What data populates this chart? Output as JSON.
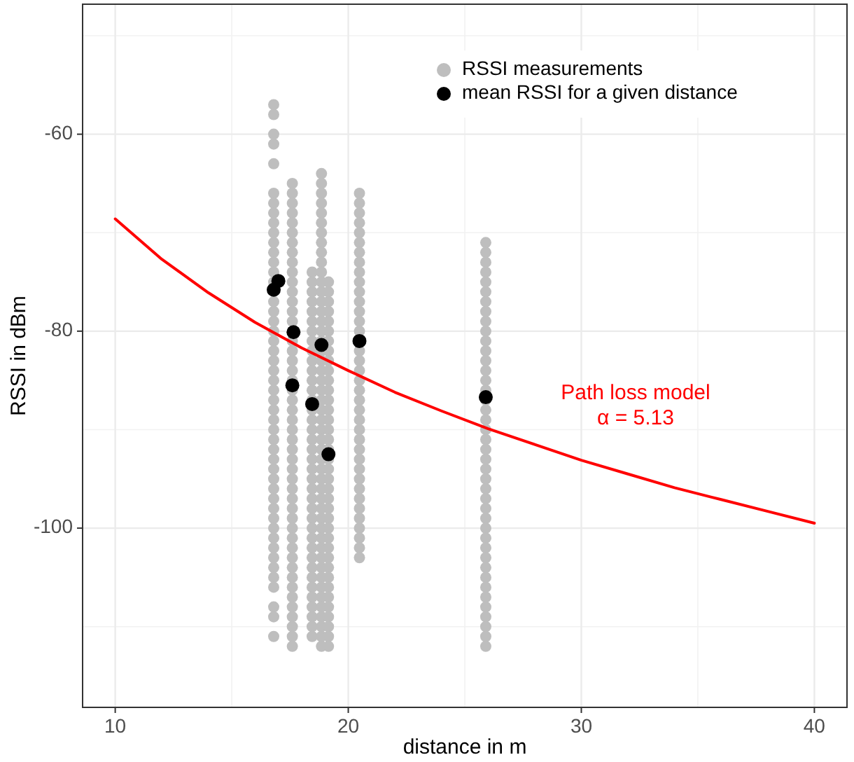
{
  "chart_data": {
    "type": "scatter",
    "xlabel": "distance in m",
    "ylabel": "RSSI in dBm",
    "xlim": [
      8.6,
      41.4
    ],
    "ylim": [
      -118.2,
      -46.8
    ],
    "xticks": [
      10,
      20,
      30,
      40
    ],
    "yticks": [
      -60,
      -80,
      -100
    ],
    "grid": true,
    "legend": "top right",
    "marker": "circle",
    "series": [
      {
        "name": "RSSI measurements",
        "color": "#bebebe",
        "x": [
          16.8,
          16.8,
          16.8,
          16.8,
          16.8,
          16.8,
          16.8,
          16.8,
          16.8,
          16.8,
          16.8,
          16.8,
          16.8,
          16.8,
          16.8,
          16.8,
          16.8,
          16.8,
          16.8,
          16.8,
          16.8,
          16.8,
          16.8,
          16.8,
          16.8,
          16.8,
          16.8,
          16.8,
          16.8,
          16.8,
          16.8,
          16.8,
          16.8,
          16.8,
          16.8,
          16.8,
          16.8,
          16.8,
          16.8,
          16.8,
          16.8,
          16.8,
          16.8,
          16.8,
          16.8,
          16.8,
          16.8,
          16.8,
          17.6,
          17.6,
          17.6,
          17.6,
          17.6,
          17.6,
          17.6,
          17.6,
          17.6,
          17.6,
          17.6,
          17.6,
          17.6,
          17.6,
          17.6,
          17.6,
          17.6,
          17.6,
          17.6,
          17.6,
          17.6,
          17.6,
          17.6,
          17.6,
          17.6,
          17.6,
          17.6,
          17.6,
          17.6,
          17.6,
          17.6,
          17.6,
          17.6,
          17.6,
          17.6,
          17.6,
          17.6,
          17.6,
          17.6,
          17.6,
          17.6,
          17.6,
          17.6,
          17.6,
          17.6,
          17.6,
          17.6,
          18.45,
          18.45,
          18.45,
          18.45,
          18.45,
          18.45,
          18.45,
          18.45,
          18.45,
          18.45,
          18.45,
          18.45,
          18.45,
          18.45,
          18.45,
          18.45,
          18.45,
          18.45,
          18.45,
          18.45,
          18.45,
          18.45,
          18.45,
          18.45,
          18.45,
          18.45,
          18.45,
          18.45,
          18.45,
          18.45,
          18.45,
          18.45,
          18.45,
          18.45,
          18.45,
          18.45,
          18.45,
          18.45,
          18.85,
          18.85,
          18.85,
          18.85,
          18.85,
          18.85,
          18.85,
          18.85,
          18.85,
          18.85,
          18.85,
          18.85,
          18.85,
          18.85,
          18.85,
          18.85,
          18.85,
          18.85,
          18.85,
          18.85,
          18.85,
          18.85,
          18.85,
          18.85,
          18.85,
          18.85,
          18.85,
          18.85,
          18.85,
          18.85,
          18.85,
          18.85,
          18.85,
          18.85,
          18.85,
          18.85,
          18.85,
          18.85,
          18.85,
          18.85,
          18.85,
          18.85,
          18.85,
          18.85,
          18.85,
          18.85,
          18.85,
          18.85,
          18.85,
          19.15,
          19.15,
          19.15,
          19.15,
          19.15,
          19.15,
          19.15,
          19.15,
          19.15,
          19.15,
          19.15,
          19.15,
          19.15,
          19.15,
          19.15,
          19.15,
          19.15,
          19.15,
          19.15,
          19.15,
          19.15,
          19.15,
          19.15,
          19.15,
          19.15,
          19.15,
          19.15,
          19.15,
          19.15,
          19.15,
          19.15,
          19.15,
          19.15,
          19.15,
          19.15,
          19.15,
          19.15,
          19.15,
          20.48,
          20.48,
          20.48,
          20.48,
          20.48,
          20.48,
          20.48,
          20.48,
          20.48,
          20.48,
          20.48,
          20.48,
          20.48,
          20.48,
          20.48,
          20.48,
          20.48,
          20.48,
          20.48,
          20.48,
          20.48,
          20.48,
          20.48,
          20.48,
          20.48,
          20.48,
          20.48,
          20.48,
          20.48,
          20.48,
          20.48,
          20.48,
          20.48,
          20.48,
          20.48,
          20.48,
          20.48,
          25.9,
          25.9,
          25.9,
          25.9,
          25.9,
          25.9,
          25.9,
          25.9,
          25.9,
          25.9,
          25.9,
          25.9,
          25.9,
          25.9,
          25.9,
          25.9,
          25.9,
          25.9,
          25.9,
          25.9,
          25.9,
          25.9,
          25.9,
          25.9,
          25.9,
          25.9,
          25.9,
          25.9,
          25.9,
          25.9,
          25.9,
          25.9,
          25.9,
          25.9,
          25.9,
          25.9,
          25.9,
          25.9,
          25.9,
          25.9,
          25.9,
          25.9
        ],
        "values": [
          -57,
          -58,
          -60,
          -61,
          -63,
          -66,
          -67,
          -68,
          -69,
          -70,
          -71,
          -72,
          -73,
          -74,
          -75,
          -77,
          -78,
          -79,
          -80,
          -81,
          -82,
          -83,
          -84,
          -85,
          -86,
          -87,
          -88,
          -89,
          -90,
          -91,
          -92,
          -93,
          -94,
          -95,
          -96,
          -97,
          -98,
          -99,
          -100,
          -101,
          -102,
          -103,
          -104,
          -105,
          -106,
          -108,
          -109,
          -111,
          -65,
          -66,
          -67,
          -68,
          -69,
          -70,
          -71,
          -72,
          -73,
          -74,
          -75,
          -76,
          -77,
          -78,
          -79,
          -81,
          -82,
          -83,
          -84,
          -85,
          -86,
          -87,
          -88,
          -89,
          -90,
          -91,
          -92,
          -93,
          -94,
          -95,
          -96,
          -97,
          -98,
          -99,
          -100,
          -101,
          -102,
          -103,
          -104,
          -105,
          -106,
          -107,
          -108,
          -109,
          -110,
          -111,
          -112,
          -74,
          -75,
          -76,
          -77,
          -78,
          -79,
          -80,
          -81,
          -82,
          -83,
          -84,
          -85,
          -86,
          -87,
          -88,
          -89,
          -90,
          -91,
          -92,
          -93,
          -94,
          -95,
          -96,
          -97,
          -98,
          -99,
          -100,
          -101,
          -102,
          -103,
          -104,
          -105,
          -106,
          -107,
          -108,
          -109,
          -110,
          -111,
          -64,
          -65,
          -66,
          -67,
          -68,
          -69,
          -70,
          -71,
          -72,
          -73,
          -74,
          -75,
          -76,
          -77,
          -78,
          -79,
          -80,
          -81,
          -82,
          -83,
          -84,
          -85,
          -86,
          -87,
          -88,
          -89,
          -90,
          -91,
          -92,
          -93,
          -94,
          -95,
          -96,
          -97,
          -98,
          -99,
          -100,
          -101,
          -102,
          -103,
          -104,
          -105,
          -106,
          -107,
          -108,
          -109,
          -110,
          -111,
          -112,
          -75,
          -76,
          -77,
          -78,
          -79,
          -80,
          -81,
          -82,
          -83,
          -84,
          -85,
          -86,
          -87,
          -88,
          -89,
          -90,
          -91,
          -92,
          -93,
          -94,
          -95,
          -96,
          -97,
          -98,
          -99,
          -100,
          -101,
          -102,
          -103,
          -104,
          -105,
          -106,
          -107,
          -108,
          -109,
          -110,
          -111,
          -112,
          -66,
          -67,
          -68,
          -69,
          -70,
          -71,
          -72,
          -73,
          -74,
          -75,
          -76,
          -77,
          -78,
          -79,
          -80,
          -82,
          -83,
          -84,
          -85,
          -86,
          -87,
          -88,
          -89,
          -90,
          -91,
          -92,
          -93,
          -94,
          -95,
          -96,
          -97,
          -98,
          -99,
          -100,
          -101,
          -102,
          -103,
          -71,
          -72,
          -73,
          -74,
          -75,
          -76,
          -77,
          -78,
          -79,
          -80,
          -81,
          -82,
          -83,
          -84,
          -85,
          -86,
          -87,
          -88,
          -89,
          -90,
          -91,
          -92,
          -93,
          -94,
          -95,
          -96,
          -97,
          -98,
          -99,
          -100,
          -101,
          -102,
          -103,
          -104,
          -105,
          -106,
          -107,
          -108,
          -109,
          -110,
          -111,
          -112
        ]
      },
      {
        "name": "mean RSSI for a given distance",
        "color": "#000000",
        "x": [
          16.8,
          17.0,
          17.65,
          17.6,
          18.45,
          18.85,
          19.15,
          20.48,
          25.9
        ],
        "values": [
          -75.8,
          -74.9,
          -80.1,
          -85.5,
          -87.4,
          -81.4,
          -92.5,
          -81.0,
          -86.7
        ]
      },
      {
        "type": "line",
        "color": "#ff0000",
        "marker": "none",
        "x": [
          10,
          12,
          14,
          16,
          18,
          20,
          22,
          24,
          26,
          28,
          30,
          32,
          34,
          36,
          38,
          40
        ],
        "values": [
          -68.6,
          -72.7,
          -76.1,
          -79.1,
          -81.7,
          -84.0,
          -86.2,
          -88.1,
          -89.9,
          -91.5,
          -93.1,
          -94.5,
          -95.9,
          -97.1,
          -98.3,
          -99.5
        ]
      }
    ],
    "annotations": [
      "Path loss model",
      "α = 5.13"
    ]
  }
}
